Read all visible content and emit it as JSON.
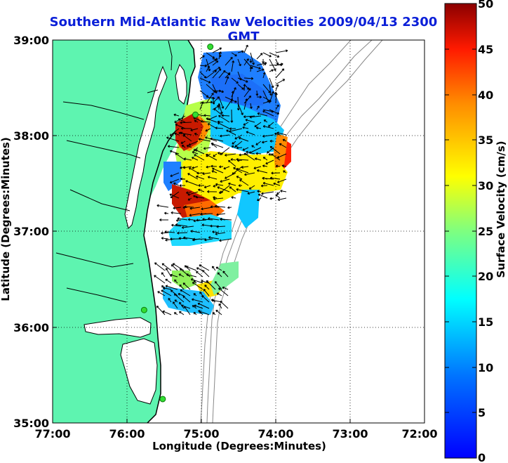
{
  "title": "Southern Mid-Atlantic Raw Velocities 2009/04/13 2300 GMT",
  "map": {
    "xlabel": "Longitude (Degrees:Minutes)",
    "ylabel": "Latitude (Degrees:Minutes)",
    "x_ticks": [
      "77:00",
      "76:00",
      "75:00",
      "74:00",
      "73:00",
      "72:00"
    ],
    "y_ticks": [
      "39:00",
      "38:00",
      "37:00",
      "36:00",
      "35:00"
    ],
    "lon_range": [
      -77,
      -72
    ],
    "lat_range": [
      35,
      39
    ],
    "land_color": "#5ef4b0",
    "grid": "dotted",
    "stations": [
      {
        "lon": -74.88,
        "lat": 38.93
      },
      {
        "lon": -75.08,
        "lat": 38.22
      },
      {
        "lon": -75.77,
        "lat": 36.18
      },
      {
        "lon": -75.52,
        "lat": 35.25
      }
    ]
  },
  "colorbar": {
    "label": "Surface Velocity (cm/s)",
    "ticks": [
      "50",
      "45",
      "40",
      "35",
      "30",
      "25",
      "20",
      "15",
      "10",
      "5",
      "0"
    ],
    "range": [
      0,
      50
    ],
    "colormap": "jet",
    "placement": "right"
  }
}
